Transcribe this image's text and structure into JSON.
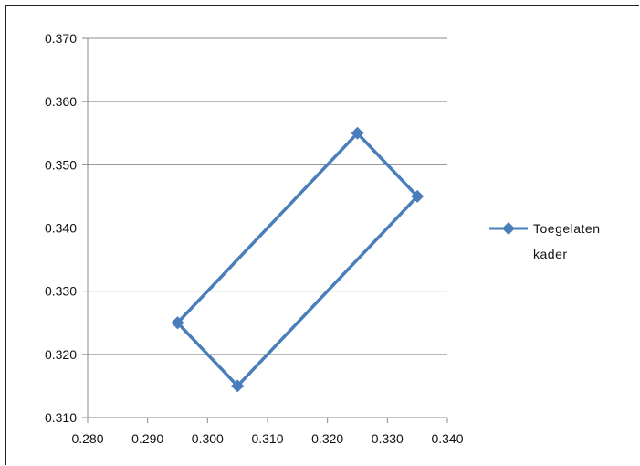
{
  "chart_data": {
    "type": "scatter",
    "title": "",
    "xlabel": "",
    "ylabel": "",
    "xlim": [
      0.28,
      0.34
    ],
    "ylim": [
      0.31,
      0.37
    ],
    "x_ticks": [
      "0.280",
      "0.290",
      "0.300",
      "0.310",
      "0.320",
      "0.330",
      "0.340"
    ],
    "y_ticks": [
      "0.310",
      "0.320",
      "0.330",
      "0.340",
      "0.350",
      "0.360",
      "0.370"
    ],
    "grid": "horizontal",
    "legend_position": "right",
    "series": [
      {
        "name": "Toegelaten kader",
        "legend_lines": [
          "Toegelaten",
          "kader"
        ],
        "color": "#4a7ebb",
        "marker": "diamond",
        "connected": true,
        "points": [
          {
            "x": 0.295,
            "y": 0.325
          },
          {
            "x": 0.325,
            "y": 0.355
          },
          {
            "x": 0.335,
            "y": 0.345
          },
          {
            "x": 0.305,
            "y": 0.315
          },
          {
            "x": 0.295,
            "y": 0.325
          }
        ]
      }
    ]
  }
}
